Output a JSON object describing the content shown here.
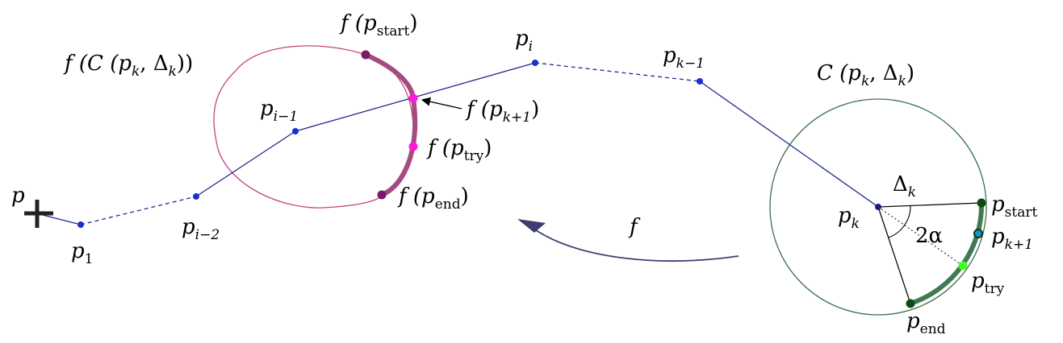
{
  "colors": {
    "path": "#1f2a8c",
    "path_point": "#1a2fd0",
    "circle": "#3b7050",
    "image_curve": "#c2477e",
    "image_arc": "#a64b7e",
    "arc_green": "#3f7a52",
    "image_point_dark": "#7a1a6a",
    "image_point_light": "#ff1ad9",
    "green_point_dark": "#0f4a14",
    "green_point_light": "#44ff22",
    "cross": "#222222",
    "arrow_f": "#3f3d6e"
  },
  "labels": {
    "p": "p",
    "p1": {
      "base": "p",
      "sub": "1"
    },
    "pi_minus_2": {
      "base": "p",
      "sub": "i−2"
    },
    "pi_minus_1": {
      "base": "p",
      "sub": "i−1"
    },
    "pi": {
      "base": "p",
      "sub": "i"
    },
    "pk_minus_1": {
      "base": "p",
      "sub": "k−1"
    },
    "pk": {
      "base": "p",
      "sub": "k"
    },
    "pk_plus_1": {
      "base": "p",
      "sub": "k+1"
    },
    "p_start": {
      "base": "p",
      "sub": "start"
    },
    "p_try": {
      "base": "p",
      "sub": "try"
    },
    "p_end": {
      "base": "p",
      "sub": "end"
    },
    "delta_k": {
      "base": "Δ",
      "sub": "k"
    },
    "two_alpha": "2α",
    "f_map": "f",
    "C_label": {
      "pre": "C (p",
      "sub1": "k",
      "mid": ", Δ",
      "sub2": "k",
      "post": ")"
    },
    "fC_label": {
      "pre": "f (C (p",
      "sub1": "k",
      "mid": ", Δ",
      "sub2": "k",
      "post": "))"
    },
    "f_start": {
      "pre": "f (p",
      "sub": "start",
      "post": ")"
    },
    "f_kplus1": {
      "pre": "f (p",
      "sub": "k+1",
      "post": ")"
    },
    "f_try": {
      "pre": "f (p",
      "sub": "try",
      "post": ")"
    },
    "f_end": {
      "pre": "f (p",
      "sub": "end",
      "post": ")"
    }
  }
}
